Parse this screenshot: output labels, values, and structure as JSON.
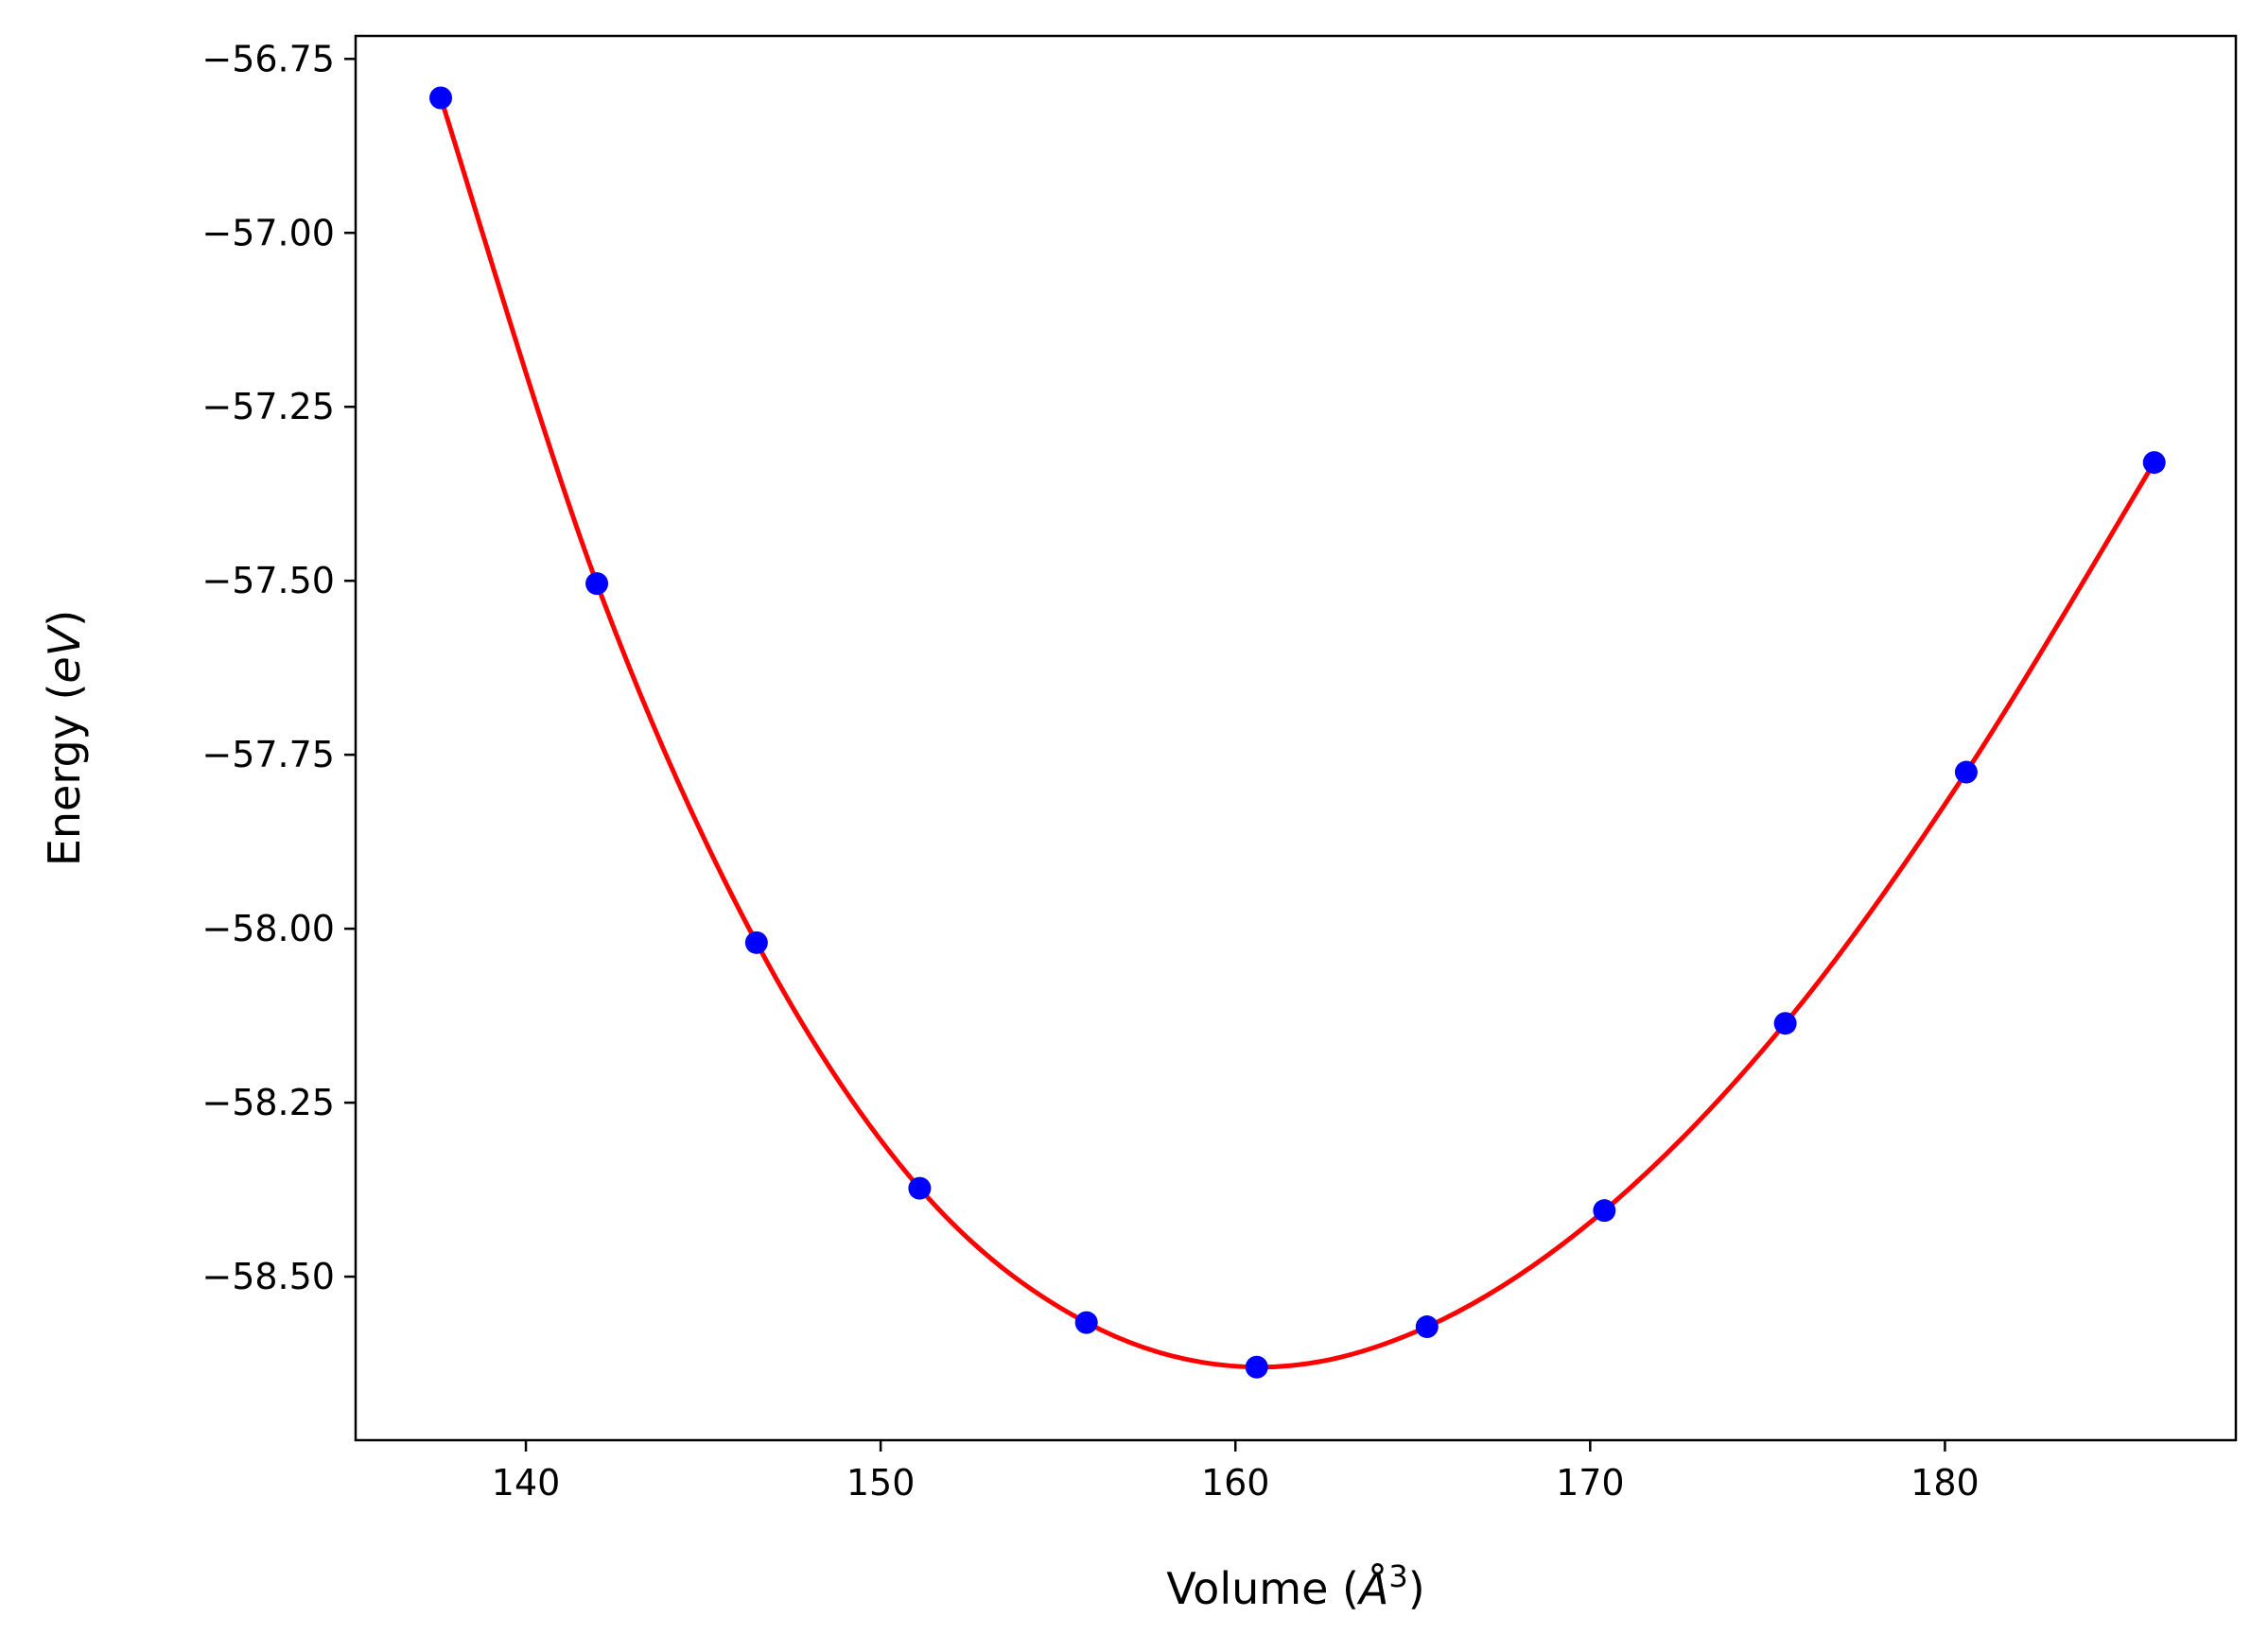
{
  "chart_data": {
    "type": "scatter",
    "title": "",
    "xlabel": {
      "prefix": "Volume (",
      "symbol": "Å",
      "superscript": "3",
      "suffix": ")"
    },
    "ylabel": {
      "prefix": "Energy (",
      "symbol": "eV",
      "suffix": ")"
    },
    "xlim": [
      135.2,
      188.2
    ],
    "ylim": [
      -58.735,
      -56.717
    ],
    "xticks": [
      140,
      150,
      160,
      170,
      180
    ],
    "xtick_labels": [
      "140",
      "150",
      "160",
      "170",
      "180"
    ],
    "yticks": [
      -56.75,
      -57.0,
      -57.25,
      -57.5,
      -57.75,
      -58.0,
      -58.25,
      -58.5
    ],
    "ytick_labels": [
      "−56.75",
      "−57.00",
      "−57.25",
      "−57.50",
      "−57.75",
      "−58.00",
      "−58.25",
      "−58.50"
    ],
    "grid": false,
    "series": [
      {
        "kind": "points",
        "color": "#0000ff",
        "x": [
          137.6,
          142.0,
          146.5,
          151.1,
          155.8,
          160.6,
          165.4,
          170.4,
          175.5,
          180.6,
          185.9
        ],
        "y": [
          -56.806,
          -57.504,
          -58.02,
          -58.373,
          -58.566,
          -58.63,
          -58.572,
          -58.405,
          -58.136,
          -57.775,
          -57.33
        ]
      },
      {
        "kind": "fit",
        "color": "#ff0000",
        "x": [
          137.6,
          142.0,
          146.5,
          151.1,
          155.8,
          160.6,
          165.4,
          170.4,
          175.5,
          180.6,
          185.9
        ],
        "y": [
          -56.806,
          -57.504,
          -58.02,
          -58.373,
          -58.566,
          -58.63,
          -58.572,
          -58.405,
          -58.136,
          -57.775,
          -57.33
        ]
      }
    ]
  }
}
